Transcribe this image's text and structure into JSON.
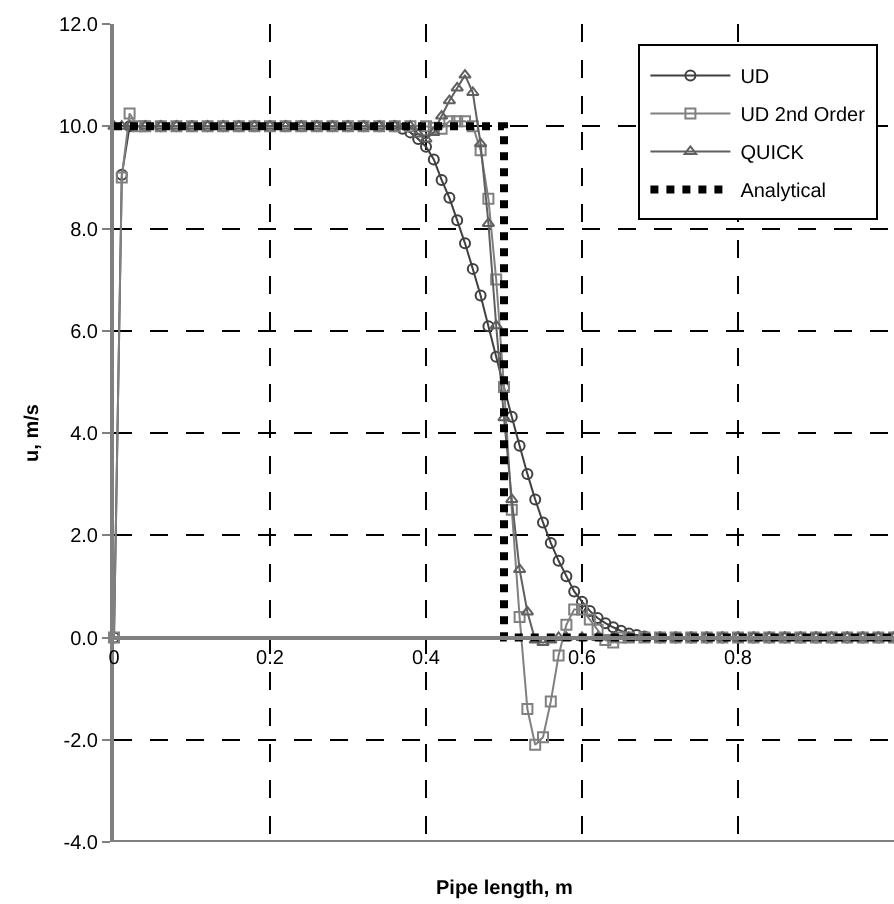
{
  "chart_data": {
    "type": "line",
    "xlabel": "Pipe length, m",
    "ylabel": "u, m/s",
    "xlim": [
      0,
      1
    ],
    "xticks": [
      0,
      0.2,
      0.4,
      0.6,
      0.8
    ],
    "ylim": [
      -4,
      12
    ],
    "yticks": [
      {
        "value": -4,
        "label": "-4.0"
      },
      {
        "value": -2,
        "label": "-2.0"
      },
      {
        "value": 0,
        "label": "0.0"
      },
      {
        "value": 2,
        "label": "2.0"
      },
      {
        "value": 4,
        "label": "4.0"
      },
      {
        "value": 6,
        "label": "6.0"
      },
      {
        "value": 8,
        "label": "8.0"
      },
      {
        "value": 10,
        "label": "10.0"
      },
      {
        "value": 12,
        "label": "12.0"
      }
    ],
    "grid": true,
    "legend": "top right",
    "series": [
      {
        "name": "UD",
        "color": "#404040",
        "marker": "circle",
        "line_style": "solid",
        "x": [
          0,
          0.01,
          0.02,
          0.04,
          0.06,
          0.08,
          0.1,
          0.12,
          0.14,
          0.16,
          0.18,
          0.2,
          0.22,
          0.24,
          0.26,
          0.28,
          0.3,
          0.32,
          0.34,
          0.36,
          0.37,
          0.38,
          0.39,
          0.4,
          0.41,
          0.42,
          0.43,
          0.44,
          0.45,
          0.46,
          0.47,
          0.48,
          0.49,
          0.5,
          0.51,
          0.52,
          0.53,
          0.54,
          0.55,
          0.56,
          0.57,
          0.58,
          0.59,
          0.6,
          0.61,
          0.62,
          0.63,
          0.64,
          0.65,
          0.66,
          0.67,
          0.68,
          0.7,
          0.72,
          0.74,
          0.76,
          0.78,
          0.8,
          0.82,
          0.84,
          0.86,
          0.88,
          0.9,
          0.92,
          0.94,
          0.96,
          0.98,
          1.0
        ],
        "values": [
          0,
          9.05,
          10,
          10,
          10,
          10,
          10,
          10,
          10,
          10,
          10,
          10,
          10,
          10,
          10,
          10,
          10,
          10,
          10,
          10,
          9.95,
          9.88,
          9.75,
          9.6,
          9.35,
          8.95,
          8.6,
          8.16,
          7.71,
          7.21,
          6.69,
          6.09,
          5.49,
          4.89,
          4.32,
          3.75,
          3.2,
          2.7,
          2.25,
          1.85,
          1.5,
          1.2,
          0.9,
          0.7,
          0.52,
          0.38,
          0.28,
          0.2,
          0.13,
          0.08,
          0.05,
          0.02,
          0,
          0,
          0,
          0,
          0,
          0,
          0,
          0,
          0,
          0,
          0,
          0,
          0,
          0,
          0,
          0
        ]
      },
      {
        "name": "UD 2nd Order",
        "color": "#808080",
        "marker": "square",
        "line_style": "solid",
        "x": [
          0,
          0.01,
          0.02,
          0.03,
          0.04,
          0.06,
          0.08,
          0.1,
          0.12,
          0.14,
          0.16,
          0.18,
          0.2,
          0.22,
          0.24,
          0.26,
          0.28,
          0.3,
          0.32,
          0.34,
          0.36,
          0.38,
          0.4,
          0.41,
          0.42,
          0.43,
          0.44,
          0.45,
          0.46,
          0.47,
          0.48,
          0.49,
          0.5,
          0.51,
          0.52,
          0.53,
          0.54,
          0.55,
          0.56,
          0.57,
          0.58,
          0.59,
          0.6,
          0.61,
          0.62,
          0.63,
          0.64,
          0.65,
          0.66,
          0.68,
          0.7,
          0.72,
          0.74,
          0.76,
          0.78,
          0.8,
          0.82,
          0.84,
          0.86,
          0.88,
          0.9,
          0.92,
          0.94,
          0.96,
          0.98,
          1.0
        ],
        "values": [
          0,
          9.0,
          10.25,
          10,
          10,
          10,
          10,
          10,
          10,
          10,
          10,
          10,
          10,
          10,
          10,
          10,
          10,
          10,
          10,
          10,
          10,
          10,
          10,
          9.97,
          9.95,
          10.1,
          10.1,
          10.1,
          10.0,
          9.53,
          8.58,
          7.0,
          4.9,
          2.5,
          0.4,
          -1.4,
          -2.1,
          -1.95,
          -1.25,
          -0.35,
          0.25,
          0.55,
          0.55,
          0.35,
          0.15,
          -0.05,
          -0.1,
          0,
          0,
          0,
          0,
          0,
          0,
          0,
          0,
          0,
          0,
          0,
          0,
          0,
          0,
          0,
          0,
          0,
          0,
          0
        ]
      },
      {
        "name": "QUICK",
        "color": "#606060",
        "marker": "triangle",
        "line_style": "solid",
        "x": [
          0,
          0.01,
          0.02,
          0.04,
          0.06,
          0.08,
          0.1,
          0.12,
          0.14,
          0.16,
          0.18,
          0.2,
          0.22,
          0.24,
          0.26,
          0.28,
          0.3,
          0.32,
          0.34,
          0.36,
          0.38,
          0.39,
          0.4,
          0.41,
          0.42,
          0.43,
          0.44,
          0.45,
          0.46,
          0.47,
          0.48,
          0.49,
          0.5,
          0.51,
          0.52,
          0.53,
          0.54,
          0.55,
          0.56,
          0.57,
          0.58,
          0.6,
          0.62,
          0.64,
          0.66,
          0.68,
          0.7,
          0.72,
          0.74,
          0.76,
          0.78,
          0.8,
          0.82,
          0.84,
          0.86,
          0.88,
          0.9,
          0.92,
          0.94,
          0.96,
          0.98,
          1.0
        ],
        "values": [
          10,
          10,
          10,
          10,
          10,
          10,
          10,
          10,
          10,
          10,
          10,
          10,
          10,
          10,
          10,
          10,
          10,
          10,
          10,
          10,
          10,
          9.85,
          9.75,
          9.88,
          10.2,
          10.5,
          10.75,
          11.0,
          10.66,
          9.66,
          8.1,
          6.1,
          4.3,
          2.7,
          1.33,
          0.5,
          -0.05,
          -0.1,
          -0.05,
          0,
          0,
          0,
          0,
          0,
          0,
          0,
          0,
          0,
          0,
          0,
          0,
          0,
          0,
          0,
          0,
          0,
          0,
          0,
          0,
          0,
          0,
          0
        ]
      },
      {
        "name": "Analytical",
        "color": "#000000",
        "marker": "none",
        "line_style": "dotted",
        "x": [
          0,
          0.5,
          0.5,
          1.0
        ],
        "values": [
          10,
          10,
          0,
          0
        ]
      }
    ]
  }
}
